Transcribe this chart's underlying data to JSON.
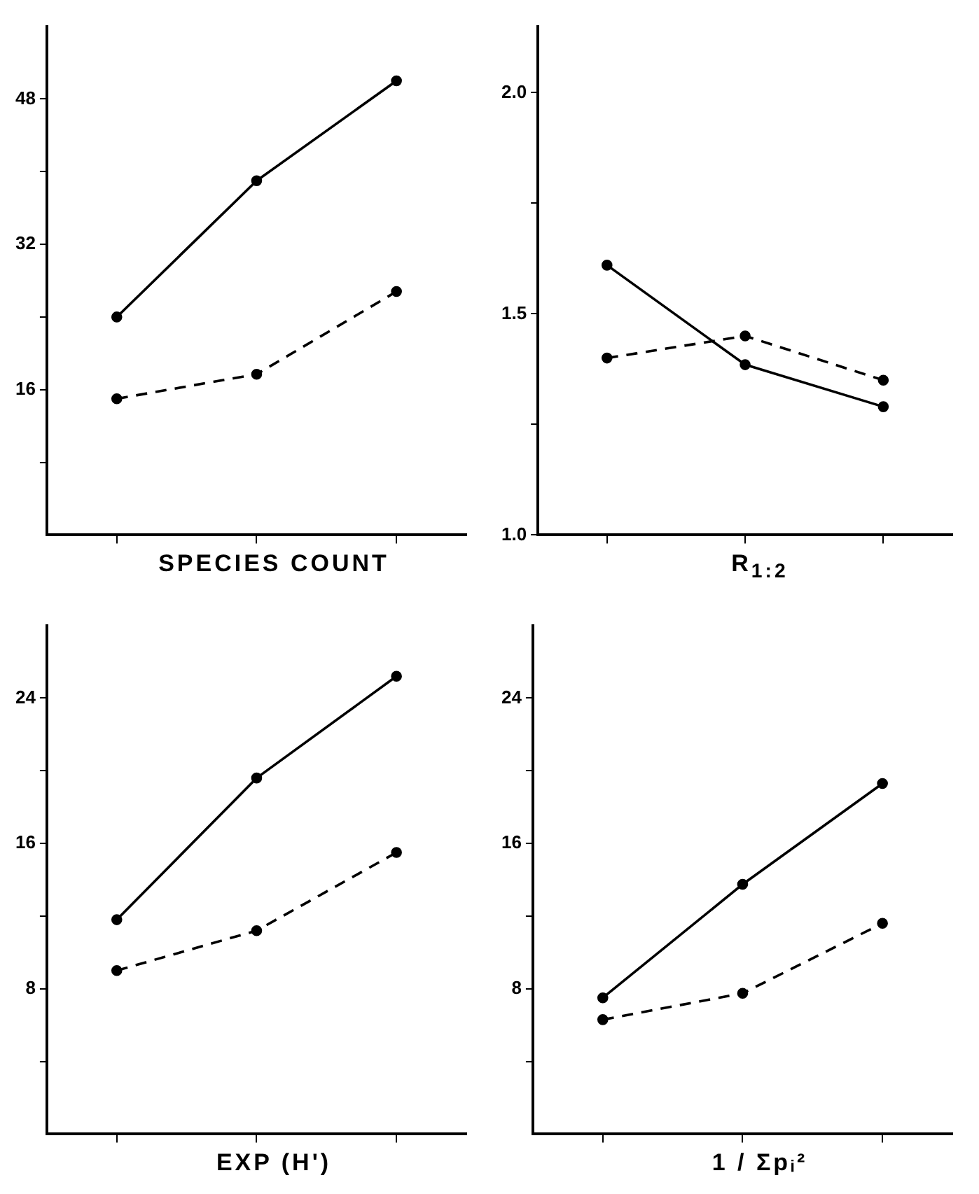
{
  "chart_data": [
    {
      "type": "line",
      "xlabel": "SPECIES COUNT",
      "categories": [
        null,
        null,
        null
      ],
      "ylim": [
        0,
        56
      ],
      "yticks": [
        {
          "value": 8,
          "label": null
        },
        16,
        {
          "value": 24,
          "label": null
        },
        32,
        {
          "value": 40,
          "label": null
        },
        48
      ],
      "tick_labels": "y",
      "marker": "circle",
      "series": [
        {
          "color": "#000000",
          "line_style": "solid",
          "values": [
            24,
            39,
            50
          ]
        },
        {
          "color": "#000000",
          "line_style": "dashed",
          "values": [
            15,
            17.7,
            26.8
          ]
        }
      ]
    },
    {
      "type": "line",
      "xlabel": "R$_{1:2}$",
      "categories": [
        null,
        null,
        null
      ],
      "ylim": [
        1.0,
        2.15
      ],
      "yticks": [
        {
          "value": 1.0,
          "label": "1.0"
        },
        {
          "value": 1.25,
          "label": null
        },
        1.5,
        {
          "value": 1.75,
          "label": null
        },
        {
          "value": 2.0,
          "label": "2.0"
        }
      ],
      "tick_labels": "y",
      "marker": "circle",
      "series": [
        {
          "color": "#000000",
          "line_style": "solid",
          "values": [
            1.61,
            1.385,
            1.29
          ]
        },
        {
          "color": "#000000",
          "line_style": "dashed",
          "values": [
            1.4,
            1.45,
            1.35
          ]
        }
      ]
    },
    {
      "type": "line",
      "xlabel": "EXP (H')",
      "categories": [
        null,
        null,
        null
      ],
      "ylim": [
        0,
        28
      ],
      "yticks": [
        {
          "value": 4,
          "label": null
        },
        8,
        {
          "value": 12,
          "label": null
        },
        16,
        {
          "value": 20,
          "label": null
        },
        24
      ],
      "tick_labels": "y",
      "marker": "circle",
      "series": [
        {
          "color": "#000000",
          "line_style": "solid",
          "values": [
            11.8,
            19.6,
            25.2
          ]
        },
        {
          "color": "#000000",
          "line_style": "dashed",
          "values": [
            9.0,
            11.2,
            15.5
          ]
        }
      ]
    },
    {
      "type": "line",
      "xlabel": "1 / Σpᵢ²",
      "categories": [
        null,
        null,
        null
      ],
      "ylim": [
        0,
        28
      ],
      "yticks": [
        {
          "value": 4,
          "label": null
        },
        8,
        {
          "value": 12,
          "label": null
        },
        16,
        {
          "value": 20,
          "label": null
        },
        24
      ],
      "tick_labels": "y",
      "marker": "circle",
      "series": [
        {
          "color": "#000000",
          "line_style": "solid",
          "values": [
            7.5,
            13.75,
            19.3
          ]
        },
        {
          "color": "#000000",
          "line_style": "dashed",
          "values": [
            6.3,
            7.75,
            11.6
          ]
        }
      ]
    }
  ]
}
